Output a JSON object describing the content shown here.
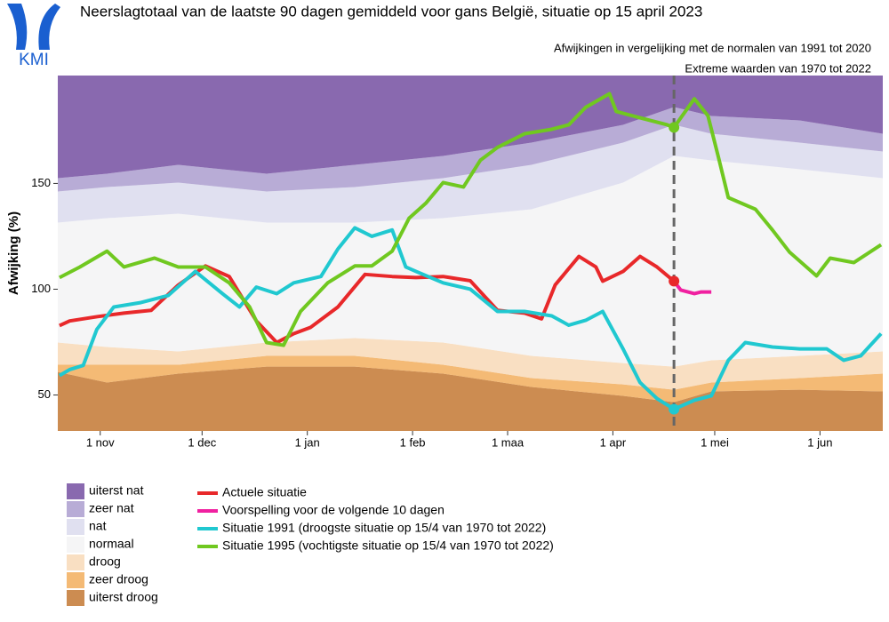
{
  "logo_text": "KMI",
  "chart_data": {
    "type": "band-line",
    "title": "Neerslagtotaal van de laatste 90 dagen gemiddeld voor gans België, situatie op 15 april 2023",
    "subtitles": [
      "Afwijkingen in vergelijking met de normalen van 1991 tot 2020",
      "Extreme waarden van 1970 tot 2022"
    ],
    "y_label": "Afwijking (%)",
    "xlim": [
      -12.5,
      230.5
    ],
    "xticks": [
      {
        "value": 0,
        "label": "1 nov"
      },
      {
        "value": 30,
        "label": "1 dec"
      },
      {
        "value": 61,
        "label": "1 jan"
      },
      {
        "value": 92,
        "label": "1 feb"
      },
      {
        "value": 120,
        "label": "1 maa"
      },
      {
        "value": 151,
        "label": "1 apr"
      },
      {
        "value": 181,
        "label": "1 mei"
      },
      {
        "value": 212,
        "label": "1 jun"
      }
    ],
    "ylim": [
      33,
      201
    ],
    "yticks": [
      50,
      100,
      150
    ],
    "reference_x": 169,
    "band_x": [
      -12.5,
      2,
      23,
      49,
      75,
      101,
      127,
      154,
      169,
      180,
      206,
      230.5
    ],
    "bands": [
      {
        "name": "uiterst droog",
        "color": "#b8600e",
        "values": [
          60.9,
          55.9,
          60.1,
          63.4,
          63.4,
          60.1,
          53.8,
          49.6,
          46.6,
          51.7,
          52.5,
          51.7
        ]
      },
      {
        "name": "zeer droog",
        "color": "#f0a040",
        "values": [
          3.4,
          8.4,
          4.2,
          5.1,
          5.1,
          4.2,
          4.2,
          5.4,
          5.9,
          4.2,
          5.5,
          8.4
        ]
      },
      {
        "name": "droog",
        "color": "#f7d2aa",
        "values": [
          10.5,
          8.4,
          6.3,
          6.3,
          8.4,
          10.5,
          10.5,
          10.1,
          10.9,
          10.5,
          10.5,
          10.5
        ]
      },
      {
        "name": "normaal",
        "color": "#f1f1f3",
        "values": [
          56.7,
          60.9,
          65.1,
          56.7,
          54.6,
          58.8,
          69.3,
          85.3,
          99.6,
          94.5,
          88.2,
          81.9
        ]
      },
      {
        "name": "nat",
        "color": "#d4d4ea",
        "values": [
          14.7,
          14.7,
          14.7,
          14.7,
          16.8,
          18.9,
          21,
          18.9,
          14.7,
          12.6,
          12.6,
          12.6
        ]
      },
      {
        "name": "zeer nat",
        "color": "#9d8cc6",
        "values": [
          6.3,
          6.3,
          8.4,
          8.4,
          10.5,
          10.5,
          10.5,
          8.4,
          8.4,
          8.4,
          10.5,
          8.4
        ]
      },
      {
        "name": "uiterst nat",
        "color": "#5c2f90",
        "values": [
          60,
          60,
          60,
          60,
          60,
          60,
          60,
          60,
          60,
          60,
          60,
          60
        ]
      }
    ],
    "series": [
      {
        "name": "Actuele situatie",
        "color": "#e8282a",
        "marker": true,
        "x": [
          -12,
          -9,
          -1,
          7,
          15,
          23,
          31,
          38,
          46,
          52,
          57,
          62,
          70,
          78,
          86,
          93,
          101,
          109,
          117,
          125,
          130,
          134,
          141,
          146,
          148,
          154,
          159,
          164,
          169
        ],
        "values": [
          82.8,
          85,
          87,
          88.7,
          90,
          102,
          111,
          106,
          85,
          74.8,
          79,
          82,
          91.6,
          107,
          106,
          105.5,
          106,
          104,
          90,
          88.7,
          86,
          102,
          115.5,
          110.5,
          103.8,
          108.4,
          115.5,
          110.5,
          103.8
        ]
      },
      {
        "name": "Voorspelling voor de volgende 10 dagen",
        "color": "#f020a0",
        "marker": false,
        "x": [
          169,
          171,
          175,
          177,
          180
        ],
        "values": [
          103.8,
          99.6,
          97.9,
          98.7,
          98.7
        ]
      },
      {
        "name": "Situatie 1991 (droogste situatie op 15/4 van 1970 tot 2022)",
        "color": "#20c8d0",
        "marker": true,
        "x": [
          -12,
          -9,
          -5,
          -1,
          4,
          12,
          20,
          28,
          36,
          41,
          46,
          52,
          57,
          65,
          70,
          75,
          80,
          86,
          90,
          93,
          101,
          109,
          117,
          125,
          133,
          138,
          143,
          148,
          154,
          159,
          164,
          169,
          175,
          180,
          185,
          190,
          198,
          206,
          214,
          219,
          224,
          230
        ],
        "values": [
          59.2,
          62,
          64,
          81,
          91.6,
          93.7,
          97,
          108.4,
          97.9,
          91.6,
          101,
          97.9,
          103,
          106,
          119,
          129,
          125,
          128,
          110.5,
          108.4,
          103,
          100,
          89.5,
          89.5,
          87.4,
          83,
          85.3,
          89.5,
          71.8,
          55.9,
          48.3,
          43.3,
          47.5,
          49.6,
          66.4,
          74.8,
          72.7,
          71.8,
          71.8,
          66.4,
          68.5,
          79
        ]
      },
      {
        "name": "Situatie 1995 (vochtigste situatie op 15/4 van 1970 tot 2022)",
        "color": "#70c820",
        "marker": true,
        "x": [
          -12,
          -6,
          2,
          7,
          16,
          23,
          31,
          38,
          44,
          49,
          54,
          59,
          67,
          75,
          80,
          86,
          91,
          96,
          101,
          107,
          112,
          117,
          125,
          133,
          138,
          143,
          150,
          152,
          159,
          167,
          169,
          175,
          179,
          182,
          185,
          193,
          198,
          203,
          211,
          215,
          222,
          230
        ],
        "values": [
          105.5,
          110.5,
          118,
          110.5,
          114.7,
          110.5,
          110.5,
          103,
          91.6,
          74.8,
          73.5,
          89.5,
          103,
          111,
          111,
          118,
          133.6,
          140.8,
          150.4,
          148.3,
          161,
          167,
          173.5,
          175.6,
          177.7,
          186,
          192.4,
          184,
          181,
          177.7,
          176.5,
          190,
          182,
          163,
          143.3,
          137.8,
          128,
          117.6,
          106.3,
          114.7,
          112.6,
          121
        ]
      }
    ]
  }
}
